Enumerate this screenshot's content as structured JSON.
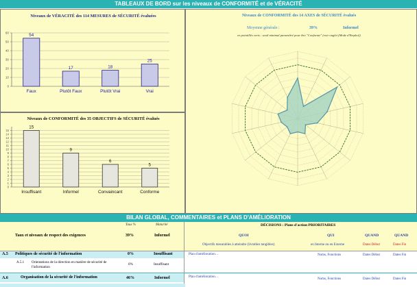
{
  "top_banner": "TABLEAUX DE BORD sur les niveaux de CONFORMITÉ et de VÉRACITÉ",
  "veracity": {
    "title": "Niveaux de VÉRACITÉ des 114 MESURES de SÉCURITÉ évaluées"
  },
  "objectives": {
    "title": "Niveaux de CONFORMITÉ des 35 OBJECTIFS de SÉCURITÉ évalués"
  },
  "radar": {
    "title": "Niveaux de CONFORMITÉ des 14 AXES de SÉCURITÉ évalués",
    "avg_label": "Moyenne générale :",
    "avg_value": "39%",
    "avg_status": "Informel",
    "note": "en pointillés verts : seuil minimal paramétré pour être \"Conforme\" (voir onglet (Mode d'Emploi))"
  },
  "chart_data": [
    {
      "type": "bar",
      "title": "Niveaux de VÉRACITÉ des 114 MESURES de SÉCURITÉ évaluées",
      "categories": [
        "Faux",
        "Plutôt Faux",
        "Plutôt Vrai",
        "Vrai"
      ],
      "values": [
        54,
        17,
        18,
        25
      ],
      "ylim": [
        0,
        60
      ],
      "yticks": [
        0,
        10,
        20,
        30,
        40,
        50,
        60
      ],
      "grid": true,
      "colors": {
        "fill": "#c9c9e8",
        "stroke": "#20208a",
        "label": "#2020a8"
      }
    },
    {
      "type": "bar",
      "title": "Niveaux de CONFORMITÉ des 35 OBJECTIFS de SÉCURITÉ évalués",
      "categories": [
        "Insuffisant",
        "Informel",
        "Convaincant",
        "Conforme"
      ],
      "values": [
        15,
        9,
        6,
        5
      ],
      "ylim": [
        0,
        16
      ],
      "yticks": [
        0,
        1,
        2,
        3,
        4,
        5,
        6,
        7,
        8,
        9,
        10,
        11,
        12,
        13,
        14,
        15
      ],
      "grid": true,
      "colors": {
        "fill": "#e6e6de",
        "stroke": "#333333",
        "label": "#111111"
      }
    },
    {
      "type": "radar",
      "axes": 14,
      "values": [
        0.6,
        0.2,
        0.75,
        0.45,
        0.3,
        0.15,
        0.25,
        0.2,
        0.25,
        0.2,
        0.25,
        0.3,
        0.2,
        0.35
      ],
      "threshold": 0.8,
      "rlim": [
        0,
        1
      ],
      "colors": {
        "fill": "#a9d5c2",
        "stroke": "#5a9aa8",
        "threshold": "#2f6a1f",
        "grid": "#9a9a7a"
      }
    }
  ],
  "bottom": {
    "banner": "BILAN GLOBAL, COMMENTAIRES et PLANS D'AMÉLIORATION",
    "col_taux": "Taux %",
    "col_maturite": "Maturité",
    "summary_label": "Taux et niveaux de respect des exigences",
    "summary_pct": "39%",
    "summary_status": "Informel",
    "decisions_label": "DÉCISIONS : Plans d'action PRIORITAIRES",
    "quoi": "QUOI",
    "qui": "QUI",
    "quand1": "QUAND",
    "quand2": "QUAND",
    "quoi_sub": "Objectifs mesurables à atteindre (livrables tangibles)",
    "qui_sub": "en Interne ou en Externe",
    "quand1_sub": "Dates Début",
    "quand2_sub": "Dates Fin",
    "rows": [
      {
        "code": "A.5",
        "label": "Politiques de sécurité de l'information",
        "pct": "0%",
        "status": "Insuffisant",
        "plan": "Plan d'amélioration…",
        "qui": "Noms, Fonctions",
        "debut": "Dates Début",
        "fin": "Dates Fin"
      },
      {
        "code": "A.5.1",
        "label": "Orientations de la direction en matière de sécurité de l'information",
        "pct": "0%",
        "status": "Insuffisant"
      },
      {
        "code": "A.6",
        "label": "Organisation de la sécurité de l'information",
        "pct": "46%",
        "status": "Informel",
        "plan": "Plan d'amélioration…",
        "qui": "Noms, Fonctions",
        "debut": "Dates Début",
        "fin": "Dates Fin"
      }
    ]
  }
}
